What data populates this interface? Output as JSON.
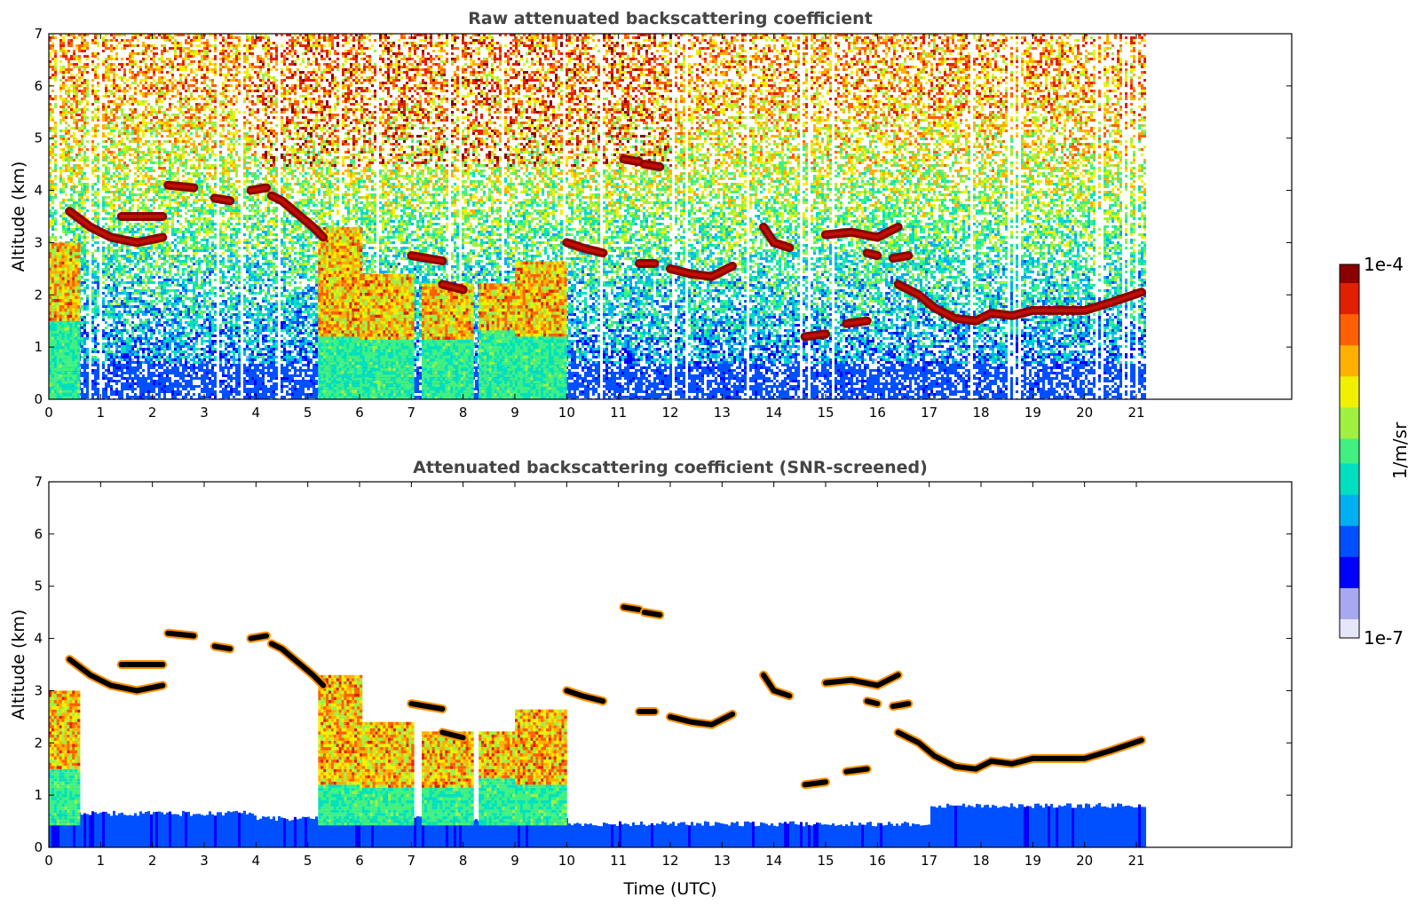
{
  "colors": {
    "colormap": [
      "#e6e6fa",
      "#a8a8f0",
      "#0000ff",
      "#0050ff",
      "#00b0f0",
      "#00e0c0",
      "#40f080",
      "#a0f040",
      "#f0f000",
      "#ffb000",
      "#ff6000",
      "#e02000",
      "#8b0000"
    ],
    "cloud_core": "#000000",
    "axes": "#000000"
  },
  "chart_data": [
    {
      "type": "heatmap",
      "title": "Raw attenuated backscattering coefficient",
      "xlabel": "",
      "ylabel": "Altitude (km)",
      "xlim": [
        0,
        24
      ],
      "ylim": [
        0,
        7
      ],
      "xticks": [
        0,
        1,
        2,
        3,
        4,
        5,
        6,
        7,
        8,
        9,
        10,
        11,
        12,
        13,
        14,
        15,
        16,
        17,
        18,
        19,
        20,
        21
      ],
      "yticks": [
        0,
        1,
        2,
        3,
        4,
        5,
        6,
        7
      ],
      "data_end_time": 21.15,
      "screened": false,
      "cloud_layers": [
        {
          "x": [
            0.4,
            0.8,
            1.2,
            1.7,
            2.2
          ],
          "y": [
            3.6,
            3.3,
            3.1,
            3.0,
            3.1
          ]
        },
        {
          "x": [
            1.4,
            2.2
          ],
          "y": [
            3.5,
            3.5
          ]
        },
        {
          "x": [
            2.3,
            2.8
          ],
          "y": [
            4.1,
            4.05
          ]
        },
        {
          "x": [
            3.2,
            3.5
          ],
          "y": [
            3.85,
            3.8
          ]
        },
        {
          "x": [
            3.9,
            4.2
          ],
          "y": [
            4.0,
            4.05
          ]
        },
        {
          "x": [
            4.3,
            4.5,
            4.8,
            5.1,
            5.3
          ],
          "y": [
            3.9,
            3.8,
            3.55,
            3.3,
            3.1
          ]
        },
        {
          "x": [
            7.0,
            7.6
          ],
          "y": [
            2.75,
            2.65
          ]
        },
        {
          "x": [
            7.6,
            8.0
          ],
          "y": [
            2.2,
            2.1
          ]
        },
        {
          "x": [
            10.0,
            10.3,
            10.7
          ],
          "y": [
            3.0,
            2.9,
            2.8
          ]
        },
        {
          "x": [
            11.1,
            11.4
          ],
          "y": [
            4.6,
            4.55
          ]
        },
        {
          "x": [
            11.5,
            11.8
          ],
          "y": [
            4.5,
            4.45
          ]
        },
        {
          "x": [
            11.4,
            11.7
          ],
          "y": [
            2.6,
            2.6
          ]
        },
        {
          "x": [
            12.0,
            12.4,
            12.8,
            13.2
          ],
          "y": [
            2.5,
            2.4,
            2.35,
            2.55
          ]
        },
        {
          "x": [
            13.8,
            14.0,
            14.3
          ],
          "y": [
            3.3,
            3.0,
            2.9
          ]
        },
        {
          "x": [
            15.0,
            15.5,
            16.0,
            16.4
          ],
          "y": [
            3.15,
            3.2,
            3.1,
            3.3
          ]
        },
        {
          "x": [
            15.8,
            16.0
          ],
          "y": [
            2.8,
            2.75
          ]
        },
        {
          "x": [
            16.3,
            16.6
          ],
          "y": [
            2.7,
            2.75
          ]
        },
        {
          "x": [
            14.6,
            15.0
          ],
          "y": [
            1.2,
            1.25
          ]
        },
        {
          "x": [
            15.4,
            15.8
          ],
          "y": [
            1.45,
            1.5
          ]
        },
        {
          "x": [
            16.4,
            16.8,
            17.1,
            17.5,
            17.9,
            18.2,
            18.6,
            19.0,
            19.5,
            20.0,
            20.5,
            21.1
          ],
          "y": [
            2.2,
            2.0,
            1.75,
            1.55,
            1.5,
            1.65,
            1.6,
            1.7,
            1.7,
            1.7,
            1.85,
            2.05
          ]
        }
      ],
      "precip_bands": [
        {
          "x": [
            0.0,
            0.6
          ],
          "y": [
            1.5,
            3.0
          ]
        },
        {
          "x": [
            5.2,
            6.0
          ],
          "y": [
            1.2,
            3.3
          ]
        },
        {
          "x": [
            6.0,
            7.0
          ],
          "y": [
            1.1,
            2.4
          ]
        },
        {
          "x": [
            7.2,
            8.2
          ],
          "y": [
            1.1,
            2.2
          ]
        },
        {
          "x": [
            8.3,
            9.2
          ],
          "y": [
            1.3,
            2.2
          ]
        },
        {
          "x": [
            9.0,
            10.0
          ],
          "y": [
            1.2,
            2.6
          ]
        }
      ]
    },
    {
      "type": "heatmap",
      "title": "Attenuated backscattering coefficient (SNR-screened)",
      "xlabel": "Time (UTC)",
      "ylabel": "Altitude (km)",
      "xlim": [
        0,
        24
      ],
      "ylim": [
        0,
        7
      ],
      "xticks": [
        0,
        1,
        2,
        3,
        4,
        5,
        6,
        7,
        8,
        9,
        10,
        11,
        12,
        13,
        14,
        15,
        16,
        17,
        18,
        19,
        20,
        21
      ],
      "yticks": [
        0,
        1,
        2,
        3,
        4,
        5,
        6,
        7
      ],
      "data_end_time": 21.15,
      "screened": true
    }
  ],
  "colorbar": {
    "max_label": "1e-4",
    "min_label": "1e-7",
    "unit_label": "1/m/sr"
  }
}
